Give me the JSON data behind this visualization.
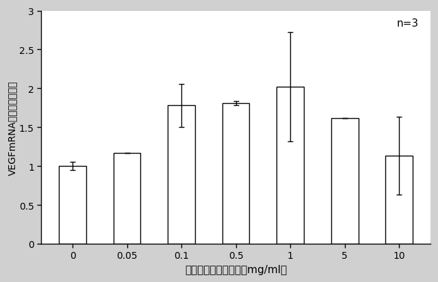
{
  "categories": [
    "0",
    "0.05",
    "0.1",
    "0.5",
    "1",
    "5",
    "10"
  ],
  "values": [
    1.0,
    1.17,
    1.78,
    1.81,
    2.02,
    1.62,
    1.13
  ],
  "errors": [
    0.05,
    0.0,
    0.28,
    0.03,
    0.7,
    0.0,
    0.5
  ],
  "xlabel": "海洋深層水（原水）（mg/ml）",
  "ylabel": "VEGFmRNA発現量（倍率）",
  "ylim": [
    0,
    3.0
  ],
  "yticks": [
    0,
    0.5,
    1.0,
    1.5,
    2.0,
    2.5,
    3.0
  ],
  "annotation": "n=3",
  "bar_color": "#ffffff",
  "bar_edge_color": "#000000",
  "background_color": "#d0d0d0",
  "plot_bg_color": "#ffffff",
  "bar_width": 0.5
}
